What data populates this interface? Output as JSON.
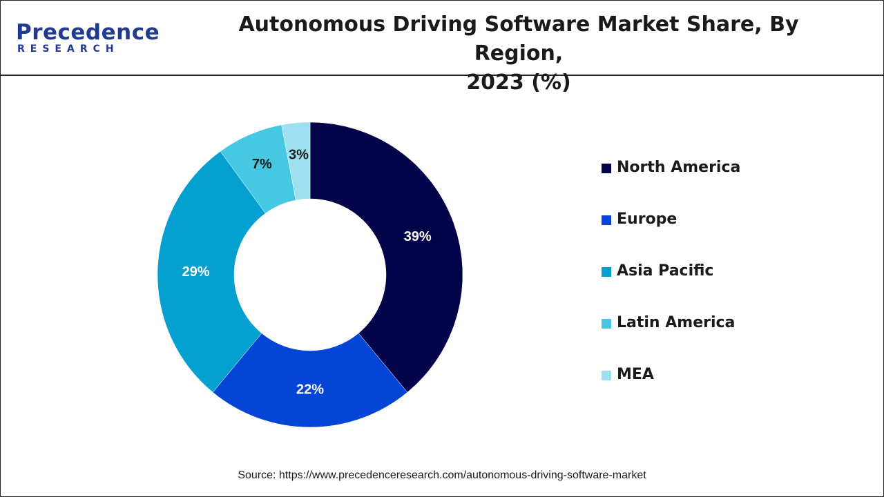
{
  "header": {
    "logo_main": "Precedence",
    "logo_sub": "RESEARCH",
    "title_line1": "Autonomous Driving Software Market Share, By Region,",
    "title_line2": "2023 (%)"
  },
  "chart_data": {
    "type": "pie",
    "variant": "donut",
    "title": "Autonomous Driving Software Market Share, By Region, 2023 (%)",
    "categories": [
      "North America",
      "Europe",
      "Asia Pacific",
      "Latin America",
      "MEA"
    ],
    "values": [
      39,
      22,
      29,
      7,
      3
    ],
    "data_labels": [
      "39%",
      "22%",
      "29%",
      "7%",
      "3%"
    ],
    "colors": [
      "#03034a",
      "#0445d6",
      "#04a0cf",
      "#46c8e3",
      "#9ee0ef"
    ],
    "label_colors": [
      "#ffffff",
      "#ffffff",
      "#ffffff",
      "#1a1a1a",
      "#1a1a1a"
    ],
    "legend_position": "right"
  },
  "footer": {
    "source": "Source: https://www.precedenceresearch.com/autonomous-driving-software-market"
  }
}
